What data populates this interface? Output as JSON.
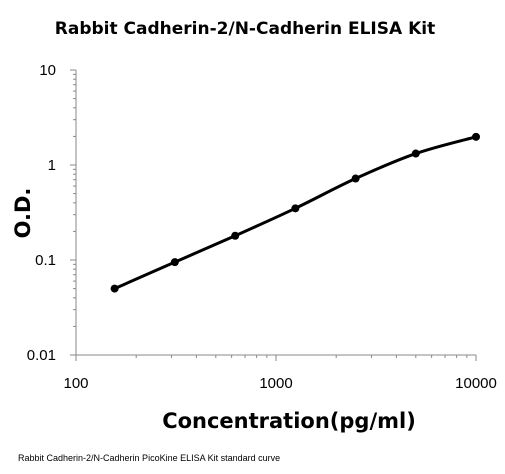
{
  "chart_data": {
    "type": "line",
    "title": "Rabbit Cadherin-2/N-Cadherin  ELISA Kit",
    "xlabel": "Concentration(pg/ml)",
    "ylabel": "O.D.",
    "caption": "Rabbit Cadherin-2/N-Cadherin PicoKine ELISA Kit standard curve",
    "x_scale": "log",
    "y_scale": "log",
    "xlim": [
      100,
      10000
    ],
    "ylim": [
      0.01,
      10
    ],
    "x_ticks": [
      "100",
      "1000",
      "10000"
    ],
    "y_ticks": [
      "10",
      "1",
      "0.1",
      "0.01"
    ],
    "x_tick_values": [
      100,
      1000,
      10000
    ],
    "y_tick_values": [
      10,
      1,
      0.1,
      0.01
    ],
    "grid": false,
    "legend": "none",
    "series": [
      {
        "x": [
          156,
          312,
          625,
          1250,
          2500,
          5000,
          10000
        ],
        "y": [
          0.05,
          0.095,
          0.18,
          0.35,
          0.72,
          1.32,
          1.98
        ],
        "color": "#000000",
        "marker": "circle"
      }
    ]
  }
}
